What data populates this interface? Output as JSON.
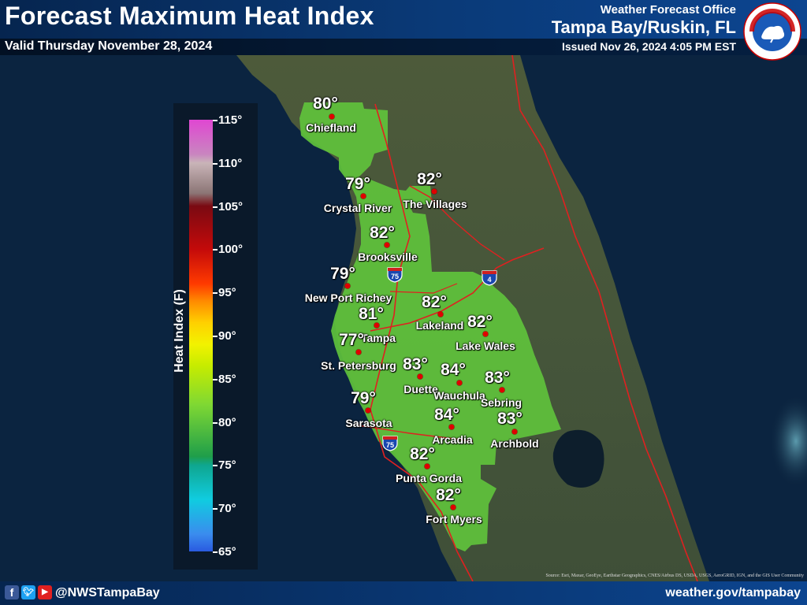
{
  "header": {
    "title": "Forecast Maximum Heat Index",
    "valid": "Valid Thursday November 28, 2024",
    "office_label": "Weather Forecast Office",
    "office": "Tampa Bay/Ruskin, FL",
    "issued": "Issued Nov 26, 2024 4:05 PM EST"
  },
  "logo": {
    "icon": "nws-logo",
    "lettering": "NATIONAL WEATHER SERVICE"
  },
  "legend": {
    "title": "Heat Index (F)",
    "ticks": [
      "115°",
      "110°",
      "105°",
      "100°",
      "95°",
      "90°",
      "85°",
      "80°",
      "75°",
      "70°",
      "65°"
    ]
  },
  "highways": [
    "75",
    "4",
    "75"
  ],
  "cities": [
    {
      "name": "Chiefland",
      "temp": "80°"
    },
    {
      "name": "Crystal River",
      "temp": "79°"
    },
    {
      "name": "The Villages",
      "temp": "82°"
    },
    {
      "name": "Brooksville",
      "temp": "82°"
    },
    {
      "name": "New Port Richey",
      "temp": "79°"
    },
    {
      "name": "Lakeland",
      "temp": "82°"
    },
    {
      "name": "Tampa",
      "temp": "81°"
    },
    {
      "name": "Lake Wales",
      "temp": "82°"
    },
    {
      "name": "St. Petersburg",
      "temp": "77°"
    },
    {
      "name": "Duette",
      "temp": "83°"
    },
    {
      "name": "Wauchula",
      "temp": "84°"
    },
    {
      "name": "Sebring",
      "temp": "83°"
    },
    {
      "name": "Sarasota",
      "temp": "79°"
    },
    {
      "name": "Arcadia",
      "temp": "84°"
    },
    {
      "name": "Archbold",
      "temp": "83°"
    },
    {
      "name": "Punta Gorda",
      "temp": "82°"
    },
    {
      "name": "Fort Myers",
      "temp": "82°"
    }
  ],
  "footer": {
    "social_icons": [
      "facebook-icon",
      "twitter-icon",
      "youtube-icon"
    ],
    "handle": "@NWSTampaBay",
    "website": "weather.gov/tampabay"
  },
  "source": "Source: Esri, Maxar, GeoEye, Earthstar Geographics, CNES/Airbus DS, USDA, USGS, AeroGRID, IGN, and the GIS User Community",
  "colors": {
    "header": "#0a3a78",
    "dot": "#e00000",
    "road": "#e02020"
  }
}
